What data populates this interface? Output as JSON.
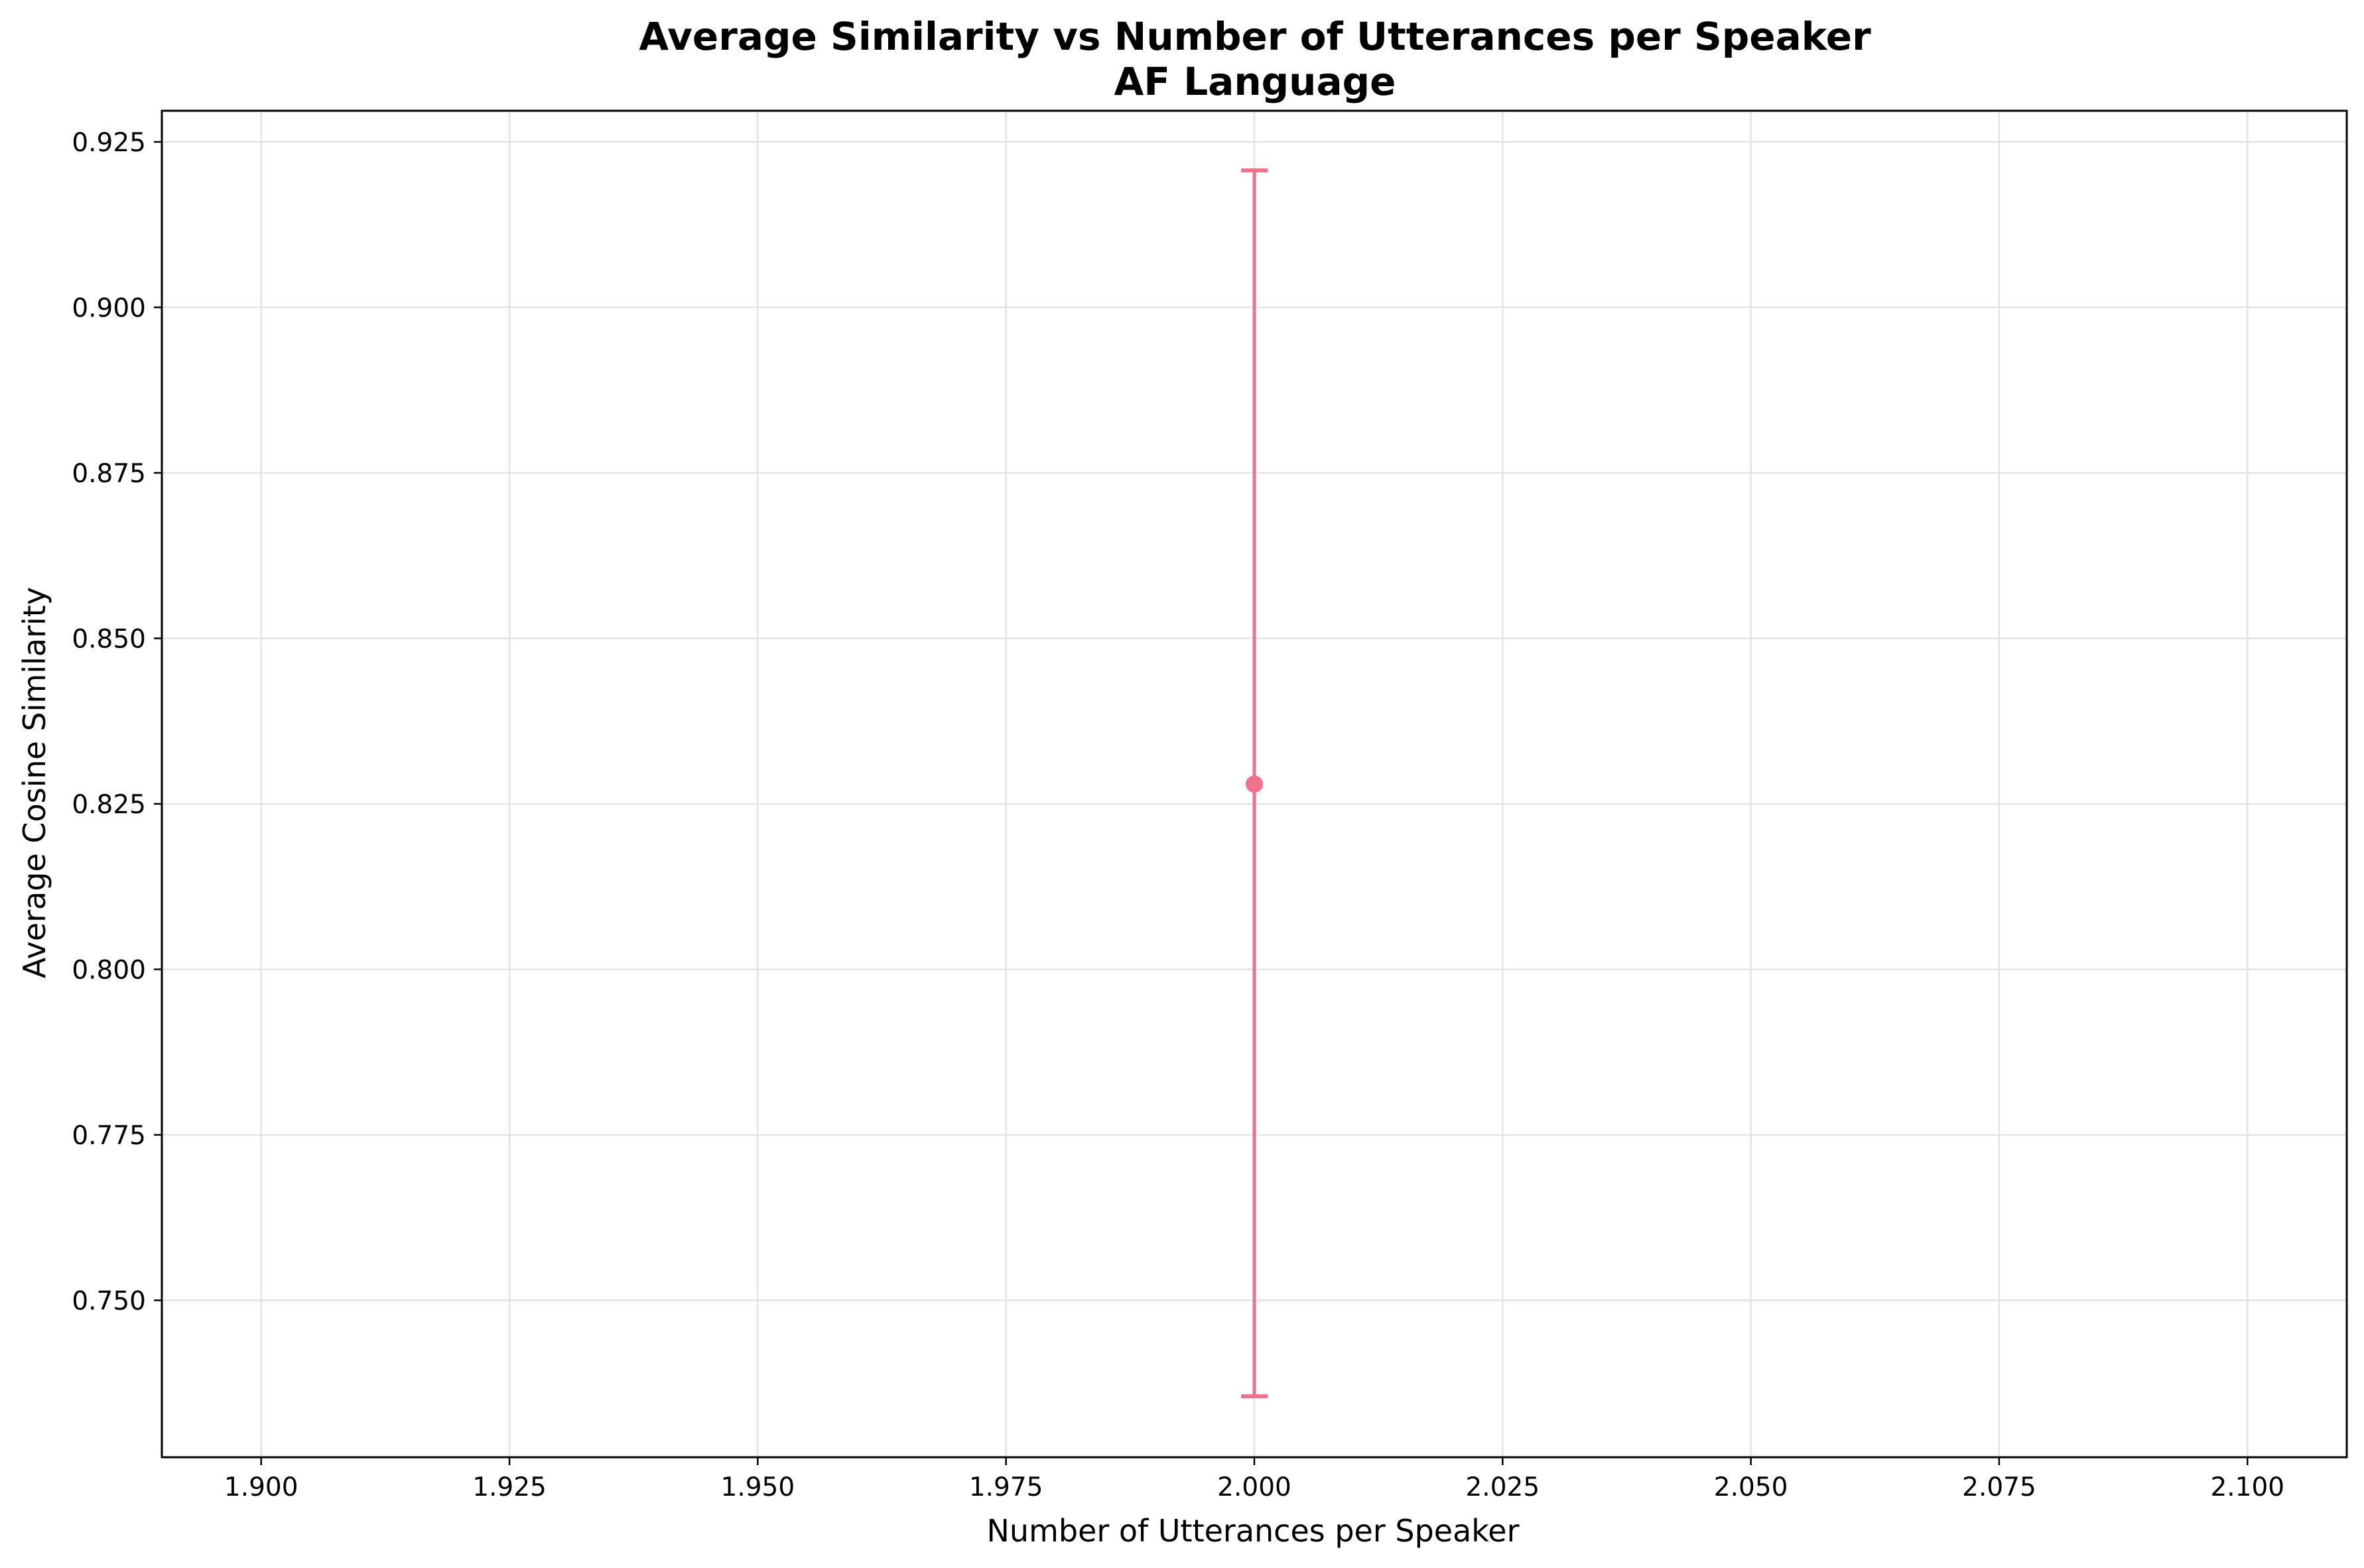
{
  "chart_data": {
    "type": "scatter",
    "title": "Average Similarity vs Number of Utterances per Speaker",
    "subtitle": "AF Language",
    "xlabel": "Number of Utterances per Speaker",
    "ylabel": "Average Cosine Similarity",
    "xlim": [
      1.89,
      2.11
    ],
    "ylim": [
      0.7263,
      0.9297
    ],
    "xticks": [
      "1.900",
      "1.925",
      "1.950",
      "1.975",
      "2.000",
      "2.025",
      "2.050",
      "2.075",
      "2.100"
    ],
    "yticks": [
      "0.750",
      "0.775",
      "0.800",
      "0.825",
      "0.850",
      "0.875",
      "0.900",
      "0.925"
    ],
    "grid": true,
    "series": [
      {
        "x": [
          2.0
        ],
        "y": [
          0.828
        ],
        "error_low": [
          0.7355
        ],
        "error_high": [
          0.9207
        ],
        "color": "#f2708a"
      }
    ]
  }
}
